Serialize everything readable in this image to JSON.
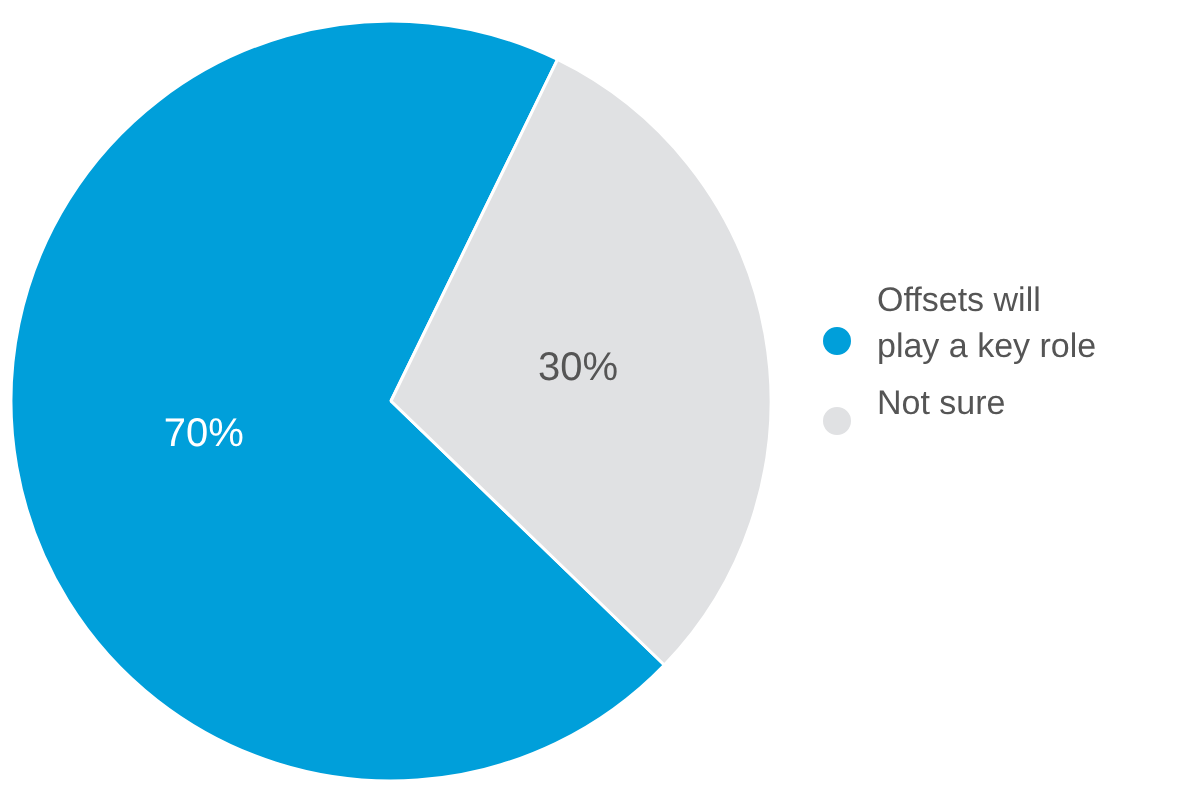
{
  "chart_data": {
    "type": "pie",
    "categories": [
      "Offsets will play a key role",
      "Not sure"
    ],
    "values": [
      70,
      30
    ],
    "colors": [
      "#009fda",
      "#e0e1e3"
    ],
    "value_labels": [
      "70%",
      "30%"
    ],
    "legend": "right"
  }
}
